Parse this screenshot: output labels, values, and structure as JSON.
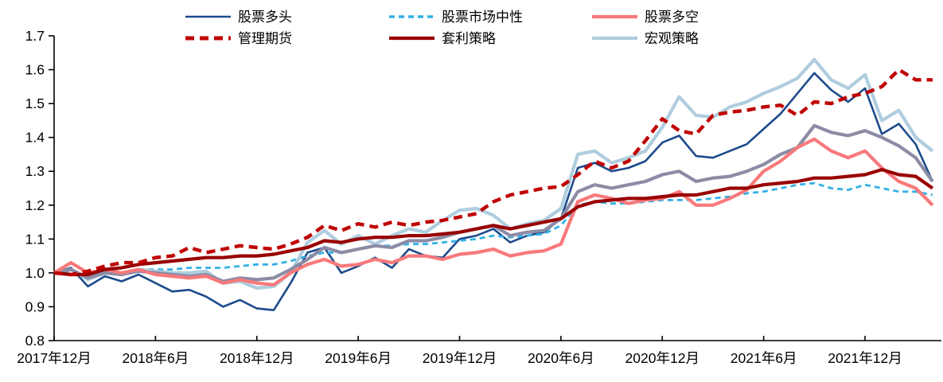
{
  "chart_data": {
    "type": "line",
    "title": "",
    "xlabel": "",
    "ylabel": "",
    "grid": false,
    "background": "#ffffff",
    "axis_color": "#000000",
    "ylim": [
      0.8,
      1.7
    ],
    "y_axis": {
      "tick_labels": [
        "0.8",
        "0.9",
        "1.0",
        "1.1",
        "1.2",
        "1.3",
        "1.4",
        "1.5",
        "1.6",
        "1.7"
      ],
      "tick_values": [
        0.8,
        0.9,
        1.0,
        1.1,
        1.2,
        1.3,
        1.4,
        1.5,
        1.6,
        1.7
      ]
    },
    "x_axis": {
      "tick_labels": [
        "2017年12月",
        "2018年6月",
        "2018年12月",
        "2019年6月",
        "2019年12月",
        "2020年6月",
        "2020年12月",
        "2021年6月",
        "2021年12月"
      ],
      "tick_month_indices": [
        0,
        6,
        12,
        18,
        24,
        30,
        36,
        42,
        48
      ]
    },
    "x_months": [
      "2017-12",
      "2018-01",
      "2018-02",
      "2018-03",
      "2018-04",
      "2018-05",
      "2018-06",
      "2018-07",
      "2018-08",
      "2018-09",
      "2018-10",
      "2018-11",
      "2018-12",
      "2019-01",
      "2019-02",
      "2019-03",
      "2019-04",
      "2019-05",
      "2019-06",
      "2019-07",
      "2019-08",
      "2019-09",
      "2019-10",
      "2019-11",
      "2019-12",
      "2020-01",
      "2020-02",
      "2020-03",
      "2020-04",
      "2020-05",
      "2020-06",
      "2020-07",
      "2020-08",
      "2020-09",
      "2020-10",
      "2020-11",
      "2020-12",
      "2021-01",
      "2021-02",
      "2021-03",
      "2021-04",
      "2021-05",
      "2021-06",
      "2021-07",
      "2021-08",
      "2021-09",
      "2021-10",
      "2021-11",
      "2021-12",
      "2022-01",
      "2022-02",
      "2022-03",
      "2022-04"
    ],
    "legend": {
      "position": "top",
      "rows": 2,
      "columns": 3
    },
    "series": [
      {
        "key": "equity-long",
        "name": "股票多头",
        "color": "#1C4B8C",
        "width": 2.6,
        "dash": "",
        "in_legend": true,
        "values": [
          1.0,
          1.015,
          0.96,
          0.99,
          0.975,
          0.995,
          0.97,
          0.945,
          0.95,
          0.93,
          0.9,
          0.92,
          0.895,
          0.89,
          0.97,
          1.06,
          1.075,
          1.0,
          1.02,
          1.045,
          1.015,
          1.07,
          1.05,
          1.045,
          1.1,
          1.11,
          1.13,
          1.09,
          1.11,
          1.12,
          1.16,
          1.31,
          1.325,
          1.3,
          1.31,
          1.33,
          1.385,
          1.405,
          1.345,
          1.34,
          1.36,
          1.38,
          1.425,
          1.47,
          1.53,
          1.59,
          1.54,
          1.505,
          1.545,
          1.41,
          1.44,
          1.38,
          1.27
        ]
      },
      {
        "key": "equity-market-neutral",
        "name": "股票市场中性",
        "color": "#33B1E6",
        "width": 2.8,
        "dash": "7 5",
        "in_legend": true,
        "values": [
          1.0,
          1.005,
          0.99,
          1.0,
          1.0,
          1.01,
          1.01,
          1.01,
          1.015,
          1.015,
          1.015,
          1.02,
          1.025,
          1.025,
          1.035,
          1.05,
          1.06,
          1.06,
          1.07,
          1.08,
          1.08,
          1.085,
          1.085,
          1.09,
          1.095,
          1.1,
          1.11,
          1.105,
          1.11,
          1.115,
          1.14,
          1.2,
          1.21,
          1.205,
          1.205,
          1.21,
          1.215,
          1.215,
          1.215,
          1.22,
          1.225,
          1.235,
          1.24,
          1.25,
          1.26,
          1.265,
          1.25,
          1.245,
          1.26,
          1.25,
          1.24,
          1.24,
          1.23
        ]
      },
      {
        "key": "equity-long-short",
        "name": "股票多空",
        "color": "#F8797B",
        "width": 4.2,
        "dash": "",
        "in_legend": true,
        "values": [
          1.0,
          1.03,
          1.0,
          1.01,
          1.0,
          1.01,
          0.995,
          0.99,
          0.985,
          0.99,
          0.97,
          0.98,
          0.97,
          0.965,
          1.0,
          1.025,
          1.04,
          1.02,
          1.025,
          1.04,
          1.03,
          1.05,
          1.05,
          1.04,
          1.055,
          1.06,
          1.07,
          1.05,
          1.06,
          1.065,
          1.085,
          1.21,
          1.23,
          1.22,
          1.205,
          1.215,
          1.22,
          1.24,
          1.2,
          1.2,
          1.22,
          1.245,
          1.3,
          1.33,
          1.37,
          1.395,
          1.36,
          1.34,
          1.36,
          1.31,
          1.27,
          1.25,
          1.2
        ]
      },
      {
        "key": "managed-futures",
        "name": "管理期货",
        "color": "#C00000",
        "width": 4.4,
        "dash": "11 7",
        "in_legend": true,
        "values": [
          1.0,
          0.995,
          1.005,
          1.02,
          1.03,
          1.03,
          1.045,
          1.05,
          1.075,
          1.06,
          1.07,
          1.08,
          1.075,
          1.07,
          1.085,
          1.105,
          1.14,
          1.125,
          1.145,
          1.135,
          1.15,
          1.14,
          1.15,
          1.155,
          1.165,
          1.175,
          1.21,
          1.23,
          1.24,
          1.25,
          1.255,
          1.29,
          1.33,
          1.31,
          1.33,
          1.39,
          1.455,
          1.42,
          1.41,
          1.465,
          1.475,
          1.48,
          1.49,
          1.495,
          1.465,
          1.505,
          1.5,
          1.52,
          1.53,
          1.55,
          1.6,
          1.57,
          1.57
        ]
      },
      {
        "key": "arbitrage",
        "name": "套利策略",
        "color": "#990000",
        "width": 4.2,
        "dash": "",
        "in_legend": true,
        "values": [
          1.0,
          0.995,
          0.995,
          1.01,
          1.015,
          1.025,
          1.03,
          1.035,
          1.04,
          1.045,
          1.045,
          1.05,
          1.05,
          1.055,
          1.065,
          1.075,
          1.095,
          1.09,
          1.1,
          1.105,
          1.105,
          1.11,
          1.11,
          1.115,
          1.12,
          1.13,
          1.14,
          1.13,
          1.14,
          1.15,
          1.16,
          1.195,
          1.21,
          1.215,
          1.22,
          1.22,
          1.225,
          1.23,
          1.23,
          1.24,
          1.25,
          1.25,
          1.26,
          1.265,
          1.27,
          1.28,
          1.28,
          1.285,
          1.29,
          1.305,
          1.29,
          1.285,
          1.25
        ]
      },
      {
        "key": "macro",
        "name": "宏观策略",
        "color": "#AFCDDE",
        "width": 4.2,
        "dash": "",
        "in_legend": true,
        "values": [
          1.0,
          1.01,
          0.98,
          1.0,
          0.995,
          1.01,
          1.005,
          1.0,
          1.0,
          1.005,
          0.97,
          0.975,
          0.955,
          0.96,
          1.0,
          1.09,
          1.125,
          1.085,
          1.11,
          1.085,
          1.11,
          1.13,
          1.12,
          1.155,
          1.185,
          1.19,
          1.17,
          1.13,
          1.145,
          1.155,
          1.19,
          1.35,
          1.36,
          1.325,
          1.34,
          1.36,
          1.43,
          1.52,
          1.465,
          1.46,
          1.49,
          1.505,
          1.53,
          1.55,
          1.575,
          1.63,
          1.57,
          1.545,
          1.585,
          1.45,
          1.48,
          1.4,
          1.36
        ]
      },
      {
        "key": "unlabeled-gray",
        "name": "",
        "color": "#8C8CA6",
        "width": 4.2,
        "dash": "",
        "in_legend": false,
        "values": [
          1.0,
          1.01,
          0.985,
          1.0,
          0.995,
          1.005,
          1.0,
          0.995,
          0.99,
          0.995,
          0.975,
          0.985,
          0.98,
          0.985,
          1.01,
          1.04,
          1.075,
          1.06,
          1.07,
          1.08,
          1.075,
          1.095,
          1.095,
          1.105,
          1.12,
          1.13,
          1.14,
          1.11,
          1.12,
          1.125,
          1.16,
          1.24,
          1.26,
          1.25,
          1.26,
          1.27,
          1.29,
          1.3,
          1.27,
          1.28,
          1.285,
          1.3,
          1.32,
          1.35,
          1.37,
          1.435,
          1.415,
          1.405,
          1.42,
          1.4,
          1.375,
          1.34,
          1.27
        ]
      }
    ]
  }
}
